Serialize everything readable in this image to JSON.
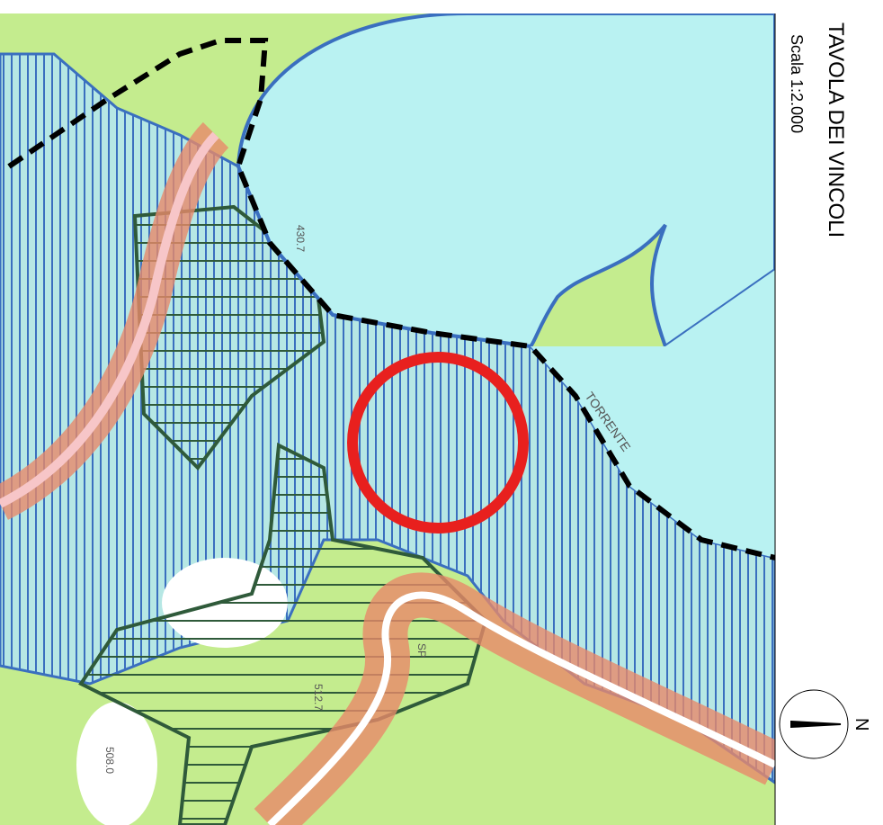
{
  "title": "TAVOLA DEI VINCOLI",
  "scale": "Scala 1:2.000",
  "north": "N",
  "map_labels": [
    "TORRENTE",
    "430.7",
    "512.7",
    "SP",
    "508.0"
  ]
}
